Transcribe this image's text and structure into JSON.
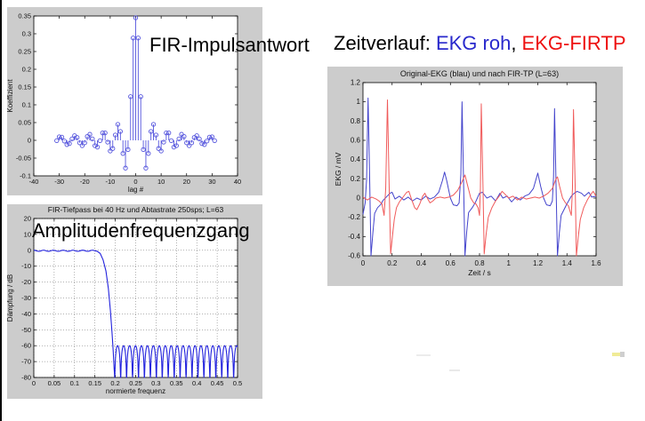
{
  "slide": {
    "background": "#ffffff",
    "left_border_color": "#000000",
    "panel_bg": "#cccccc"
  },
  "labels": {
    "impulse_overlay": "FIR-Impulsantwort",
    "amplitude_overlay": "Amplitudenfrequenzgang",
    "time_header_prefix": "Zeitverlauf: ",
    "time_header_raw": "EKG roh",
    "time_header_sep": ", ",
    "time_header_filtered": "EKG-FIRTP"
  },
  "colors": {
    "raw_blue_text": "#2929cc",
    "filtered_red_text": "#ee1111",
    "stem_blue": "#5555dd",
    "freq_blue": "#2222dd",
    "ekg_blue": "#4444cc",
    "ekg_red": "#f05a5a"
  },
  "chart_data": [
    {
      "id": "impulse",
      "type": "stem",
      "title": "",
      "xlabel": "lag #",
      "ylabel": "Koeffizient",
      "xlim": [
        -40,
        40
      ],
      "ylim": [
        -0.1,
        0.35
      ],
      "xticks": [
        -40,
        -30,
        -20,
        -10,
        0,
        10,
        20,
        30,
        40
      ],
      "yticks": [
        0.35,
        0.3,
        0.25,
        0.2,
        0.15,
        0.1,
        0.05,
        0,
        -0.05,
        -0.1
      ],
      "grid": false,
      "lags_from": -31,
      "values": [
        -0.001,
        0.01,
        0.009,
        -0.002,
        -0.012,
        -0.009,
        0.004,
        0.013,
        0.008,
        -0.007,
        -0.015,
        -0.007,
        0.011,
        0.017,
        0.004,
        -0.015,
        -0.019,
        -0.001,
        0.021,
        0.021,
        -0.005,
        -0.03,
        -0.023,
        0.015,
        0.045,
        0.025,
        -0.037,
        -0.078,
        -0.026,
        0.123,
        0.288,
        0.345,
        0.288,
        0.123,
        -0.026,
        -0.078,
        -0.037,
        0.025,
        0.045,
        0.015,
        -0.023,
        -0.03,
        -0.005,
        0.021,
        0.021,
        -0.001,
        -0.019,
        -0.015,
        0.004,
        0.017,
        0.011,
        -0.007,
        -0.015,
        -0.007,
        0.008,
        0.013,
        0.004,
        -0.009,
        -0.012,
        -0.002,
        0.009,
        0.01,
        -0.001
      ]
    },
    {
      "id": "freq",
      "type": "line",
      "title": "FIR-Tiefpass bei 40 Hz und Abtastrate 250sps; L=63",
      "xlabel": "normierte frequenz",
      "ylabel": "Dämpfung / dB",
      "xlim": [
        0,
        0.5
      ],
      "ylim": [
        -80,
        20
      ],
      "xticks": [
        0,
        0.05,
        0.1,
        0.15,
        0.2,
        0.25,
        0.3,
        0.35,
        0.4,
        0.45,
        0.5
      ],
      "yticks": [
        20,
        10,
        0,
        -10,
        -20,
        -30,
        -40,
        -50,
        -60,
        -70,
        -80
      ],
      "grid": true,
      "passband": {
        "end": 0.155,
        "offset_db": -0.3,
        "ripple_amp_db": 0.35,
        "ripple_period": 0.024
      },
      "transition": [
        [
          0.155,
          -0.5
        ],
        [
          0.163,
          -2
        ],
        [
          0.17,
          -6
        ],
        [
          0.177,
          -13
        ],
        [
          0.183,
          -24
        ],
        [
          0.188,
          -38
        ],
        [
          0.192,
          -52
        ],
        [
          0.195,
          -64
        ],
        [
          0.197,
          -74
        ],
        [
          0.1985,
          -80
        ]
      ],
      "stopband": {
        "start": 0.1985,
        "end": 0.5,
        "peak_db": -60,
        "floor_db": -80,
        "lobe_width": 0.0146
      }
    },
    {
      "id": "ekg",
      "type": "line",
      "title": "Original-EKG (blau) und nach FIR-TP (L=63)",
      "xlabel": "Zeit / s",
      "ylabel": "EKG / mV",
      "xlim": [
        0,
        1.6
      ],
      "ylim": [
        -0.6,
        1.2
      ],
      "xticks": [
        0,
        0.2,
        0.4,
        0.6,
        0.8,
        1,
        1.2,
        1.4,
        1.6
      ],
      "yticks": [
        1.2,
        1,
        0.8,
        0.6,
        0.4,
        0.2,
        0,
        -0.2,
        -0.4,
        -0.6
      ],
      "grid": false,
      "series": [
        {
          "name": "EKG roh",
          "color_key": "ekg_blue",
          "points": [
            [
              0,
              -0.17
            ],
            [
              0.015,
              -0.05
            ],
            [
              0.025,
              0.2
            ],
            [
              0.035,
              1.04
            ],
            [
              0.047,
              0.1
            ],
            [
              0.055,
              -0.6
            ],
            [
              0.068,
              -0.36
            ],
            [
              0.08,
              -0.16
            ],
            [
              0.1,
              -0.1
            ],
            [
              0.12,
              -0.07
            ],
            [
              0.14,
              -0.02
            ],
            [
              0.16,
              0.01
            ],
            [
              0.185,
              0.05
            ],
            [
              0.2,
              0.06
            ],
            [
              0.22,
              -0.01
            ],
            [
              0.25,
              0.02
            ],
            [
              0.28,
              -0.02
            ],
            [
              0.31,
              0.01
            ],
            [
              0.34,
              -0.03
            ],
            [
              0.37,
              0
            ],
            [
              0.4,
              -0.02
            ],
            [
              0.43,
              0.02
            ],
            [
              0.46,
              -0.01
            ],
            [
              0.49,
              0.01
            ],
            [
              0.52,
              0.06
            ],
            [
              0.545,
              0.18
            ],
            [
              0.56,
              0.27
            ],
            [
              0.575,
              0.18
            ],
            [
              0.6,
              0
            ],
            [
              0.62,
              -0.07
            ],
            [
              0.645,
              -0.08
            ],
            [
              0.66,
              -0.05
            ],
            [
              0.672,
              0.25
            ],
            [
              0.68,
              1.0
            ],
            [
              0.692,
              0.05
            ],
            [
              0.7,
              -0.6
            ],
            [
              0.712,
              -0.35
            ],
            [
              0.725,
              -0.15
            ],
            [
              0.75,
              -0.1
            ],
            [
              0.77,
              -0.05
            ],
            [
              0.8,
              0.05
            ],
            [
              0.82,
              0.06
            ],
            [
              0.85,
              0
            ],
            [
              0.88,
              0.02
            ],
            [
              0.91,
              -0.03
            ],
            [
              0.94,
              0.05
            ],
            [
              0.96,
              0
            ],
            [
              0.99,
              0.02
            ],
            [
              1.02,
              -0.04
            ],
            [
              1.05,
              0.01
            ],
            [
              1.08,
              -0.02
            ],
            [
              1.11,
              0.02
            ],
            [
              1.14,
              0.04
            ],
            [
              1.17,
              0.1
            ],
            [
              1.2,
              0.26
            ],
            [
              1.22,
              0.12
            ],
            [
              1.24,
              0
            ],
            [
              1.26,
              -0.07
            ],
            [
              1.285,
              -0.08
            ],
            [
              1.3,
              -0.03
            ],
            [
              1.308,
              0.22
            ],
            [
              1.315,
              0.93
            ],
            [
              1.327,
              0
            ],
            [
              1.335,
              -0.6
            ],
            [
              1.348,
              -0.36
            ],
            [
              1.36,
              -0.18
            ],
            [
              1.38,
              -0.12
            ],
            [
              1.4,
              -0.06
            ],
            [
              1.43,
              0.02
            ],
            [
              1.45,
              0.05
            ],
            [
              1.47,
              0.07
            ],
            [
              1.5,
              0.05
            ],
            [
              1.52,
              0.02
            ],
            [
              1.55,
              0.06
            ],
            [
              1.57,
              0.01
            ],
            [
              1.6,
              0.02
            ]
          ]
        },
        {
          "name": "EKG-FIRTP",
          "color_key": "ekg_red",
          "points": [
            [
              0,
              0.01
            ],
            [
              0.03,
              -0.02
            ],
            [
              0.06,
              0.01
            ],
            [
              0.09,
              -0.01
            ],
            [
              0.11,
              -0.03
            ],
            [
              0.13,
              -0.06
            ],
            [
              0.145,
              -0.18
            ],
            [
              0.156,
              0.1
            ],
            [
              0.168,
              1.02
            ],
            [
              0.18,
              0.1
            ],
            [
              0.19,
              -0.58
            ],
            [
              0.202,
              -0.4
            ],
            [
              0.215,
              -0.22
            ],
            [
              0.23,
              -0.1
            ],
            [
              0.25,
              -0.04
            ],
            [
              0.27,
              0
            ],
            [
              0.3,
              0.06
            ],
            [
              0.315,
              0.07
            ],
            [
              0.335,
              -0.02
            ],
            [
              0.355,
              -0.1
            ],
            [
              0.37,
              -0.12
            ],
            [
              0.39,
              -0.06
            ],
            [
              0.41,
              0.02
            ],
            [
              0.425,
              0.05
            ],
            [
              0.445,
              -0.01
            ],
            [
              0.46,
              -0.05
            ],
            [
              0.48,
              -0.03
            ],
            [
              0.5,
              0
            ],
            [
              0.53,
              0.01
            ],
            [
              0.56,
              0
            ],
            [
              0.59,
              0.01
            ],
            [
              0.62,
              0.03
            ],
            [
              0.65,
              0.08
            ],
            [
              0.68,
              0.17
            ],
            [
              0.7,
              0.24
            ],
            [
              0.72,
              0.12
            ],
            [
              0.74,
              0
            ],
            [
              0.76,
              -0.05
            ],
            [
              0.775,
              -0.06
            ],
            [
              0.79,
              -0.1
            ],
            [
              0.8,
              -0.18
            ],
            [
              0.806,
              0.1
            ],
            [
              0.812,
              0.98
            ],
            [
              0.824,
              0.1
            ],
            [
              0.832,
              -0.58
            ],
            [
              0.845,
              -0.38
            ],
            [
              0.86,
              -0.2
            ],
            [
              0.885,
              -0.1
            ],
            [
              0.91,
              -0.03
            ],
            [
              0.935,
              0.02
            ],
            [
              0.955,
              0.07
            ],
            [
              0.975,
              0.04
            ],
            [
              1.0,
              0
            ],
            [
              1.03,
              0.02
            ],
            [
              1.06,
              -0.02
            ],
            [
              1.09,
              0.01
            ],
            [
              1.12,
              -0.01
            ],
            [
              1.15,
              0
            ],
            [
              1.18,
              0.01
            ],
            [
              1.21,
              0
            ],
            [
              1.24,
              0.02
            ],
            [
              1.27,
              0.05
            ],
            [
              1.3,
              0.1
            ],
            [
              1.325,
              0.2
            ],
            [
              1.335,
              0.22
            ],
            [
              1.35,
              0.12
            ],
            [
              1.37,
              0
            ],
            [
              1.39,
              -0.05
            ],
            [
              1.41,
              -0.08
            ],
            [
              1.43,
              -0.18
            ],
            [
              1.438,
              0.1
            ],
            [
              1.445,
              0.92
            ],
            [
              1.457,
              0.1
            ],
            [
              1.465,
              -0.6
            ],
            [
              1.478,
              -0.4
            ],
            [
              1.492,
              -0.22
            ],
            [
              1.515,
              -0.1
            ],
            [
              1.54,
              -0.02
            ],
            [
              1.56,
              0.03
            ],
            [
              1.58,
              0.07
            ],
            [
              1.6,
              0.02
            ]
          ]
        }
      ]
    }
  ]
}
